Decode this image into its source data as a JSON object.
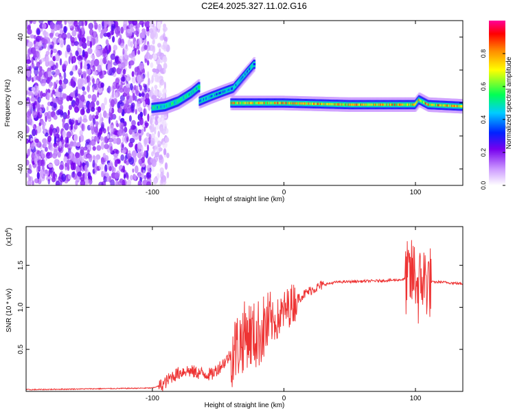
{
  "title": "C2E4.2025.327.11.02.G16",
  "chart_data": [
    {
      "type": "heatmap",
      "name": "spectrogram",
      "xlabel": "Height of straight line (km)",
      "ylabel": "Frequency (Hz)",
      "xlim": [
        -196,
        136
      ],
      "ylim": [
        -50,
        50
      ],
      "xticks": [
        -100,
        0,
        100
      ],
      "yticks": [
        -40,
        -20,
        0,
        20,
        40
      ],
      "colorbar": {
        "label": "Normalized spectral amplitude",
        "range": [
          0,
          1
        ],
        "ticks": [
          0.0,
          0.2,
          0.4,
          0.6,
          0.8
        ],
        "tick_labels": [
          "0.0",
          "0.2",
          "0.4",
          "0.6",
          "0.8"
        ]
      },
      "features": [
        {
          "name": "noise region",
          "x_range": [
            -196,
            -96
          ],
          "freq_range": [
            -50,
            50
          ],
          "amplitude": 0.1
        },
        {
          "name": "rising arc 1",
          "points": [
            [
              -100,
              -3
            ],
            [
              -90,
              -2
            ],
            [
              -80,
              1
            ],
            [
              -70,
              6
            ],
            [
              -64,
              10
            ]
          ],
          "amplitude": 0.6
        },
        {
          "name": "rising arc 2",
          "points": [
            [
              -64,
              1
            ],
            [
              -55,
              4
            ],
            [
              -45,
              7
            ],
            [
              -38,
              9
            ],
            [
              -22,
              24
            ]
          ],
          "amplitude": 0.5
        },
        {
          "name": "main carrier",
          "points": [
            [
              -40,
              0
            ],
            [
              0,
              0
            ],
            [
              50,
              -1
            ],
            [
              90,
              -1
            ],
            [
              100,
              -1
            ],
            [
              103,
              2
            ],
            [
              110,
              -1
            ],
            [
              136,
              -2
            ]
          ],
          "amplitude": 0.9
        }
      ]
    },
    {
      "type": "line",
      "name": "snr",
      "xlabel": "Height of straight line (km)",
      "ylabel": "SNR (10 * v/v)",
      "y_multiplier": "(x10",
      "y_exponent": "4",
      "xlim": [
        -196,
        136
      ],
      "ylim": [
        0,
        1.96
      ],
      "xticks": [
        -100,
        0,
        100
      ],
      "yticks": [
        0.5,
        1.0,
        1.5
      ],
      "ytick_labels": [
        "0.5",
        "1.0",
        "1.5"
      ],
      "color": "#ee3333",
      "series": [
        {
          "name": "SNR",
          "x": [
            -196,
            -150,
            -100,
            -92,
            -85,
            -75,
            -65,
            -55,
            -45,
            -35,
            -28,
            -22,
            -15,
            -5,
            0,
            10,
            20,
            30,
            40,
            60,
            80,
            90,
            95,
            100,
            102,
            105,
            110,
            120,
            136
          ],
          "y": [
            0.02,
            0.03,
            0.04,
            0.08,
            0.18,
            0.25,
            0.22,
            0.2,
            0.35,
            0.55,
            0.7,
            0.65,
            0.75,
            0.85,
            0.95,
            1.1,
            1.2,
            1.27,
            1.3,
            1.31,
            1.32,
            1.33,
            1.35,
            1.4,
            1.2,
            1.35,
            1.3,
            1.3,
            1.28
          ]
        }
      ]
    }
  ]
}
